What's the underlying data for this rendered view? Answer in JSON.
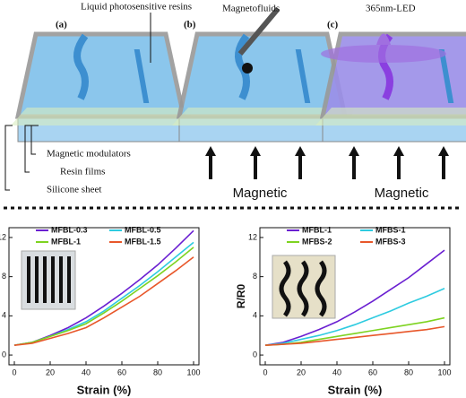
{
  "diagram": {
    "panels": [
      "(a)",
      "(b)",
      "(c)"
    ],
    "resins": "Liquid photosensitive resins",
    "magnetofluids": "Magnetofluids",
    "led": "365nm-LED",
    "modulators": "Magnetic modulators",
    "films": "Resin films",
    "silicone": "Silicone sheet",
    "magnetic": [
      "Magnetic",
      "Magnetic"
    ]
  },
  "chart_data": [
    {
      "type": "line",
      "x_label": "Strain (%)",
      "x": [
        0,
        10,
        20,
        30,
        40,
        50,
        60,
        70,
        80,
        90,
        100
      ],
      "xlim": [
        -3,
        103
      ],
      "xticks": [
        0,
        20,
        40,
        60,
        80,
        100
      ],
      "ylim": [
        -1,
        13
      ],
      "yticks": [
        0,
        4,
        8,
        12
      ],
      "series": [
        {
          "name": "MFBL-0.3",
          "color": "#6a1fd1",
          "values": [
            1,
            1.3,
            2.0,
            2.8,
            3.8,
            5.0,
            6.3,
            7.7,
            9.2,
            10.9,
            12.7
          ]
        },
        {
          "name": "MFBL-0.5",
          "color": "#2ecbe0",
          "values": [
            1,
            1.3,
            1.9,
            2.6,
            3.4,
            4.5,
            5.8,
            7.1,
            8.5,
            10.0,
            11.5
          ]
        },
        {
          "name": "MFBL-1",
          "color": "#7ed321",
          "values": [
            1,
            1.3,
            1.9,
            2.5,
            3.2,
            4.3,
            5.5,
            6.8,
            8.1,
            9.5,
            11.0
          ]
        },
        {
          "name": "MFBL-1.5",
          "color": "#e8572a",
          "values": [
            1,
            1.2,
            1.7,
            2.2,
            2.8,
            3.8,
            4.9,
            6.0,
            7.3,
            8.6,
            10.0
          ]
        }
      ]
    },
    {
      "type": "line",
      "x_label": "Strain (%)",
      "y_label": "R/R0",
      "x": [
        0,
        10,
        20,
        30,
        40,
        50,
        60,
        70,
        80,
        90,
        100
      ],
      "xlim": [
        -3,
        103
      ],
      "xticks": [
        0,
        20,
        40,
        60,
        80,
        100
      ],
      "ylim": [
        -1,
        13
      ],
      "yticks": [
        0,
        4,
        8,
        12
      ],
      "series": [
        {
          "name": "MFBL-1",
          "color": "#6a1fd1",
          "values": [
            1,
            1.3,
            1.9,
            2.6,
            3.4,
            4.4,
            5.5,
            6.7,
            7.9,
            9.3,
            10.7
          ]
        },
        {
          "name": "MFBS-1",
          "color": "#2ecbe0",
          "values": [
            1,
            1.2,
            1.6,
            2.0,
            2.5,
            3.1,
            3.8,
            4.5,
            5.3,
            6.0,
            6.8
          ]
        },
        {
          "name": "MFBS-2",
          "color": "#7ed321",
          "values": [
            1,
            1.1,
            1.3,
            1.6,
            1.9,
            2.2,
            2.5,
            2.8,
            3.1,
            3.4,
            3.8
          ]
        },
        {
          "name": "MFBS-3",
          "color": "#e8572a",
          "values": [
            1,
            1.1,
            1.2,
            1.4,
            1.6,
            1.8,
            2.0,
            2.2,
            2.4,
            2.6,
            2.9
          ]
        }
      ]
    }
  ]
}
